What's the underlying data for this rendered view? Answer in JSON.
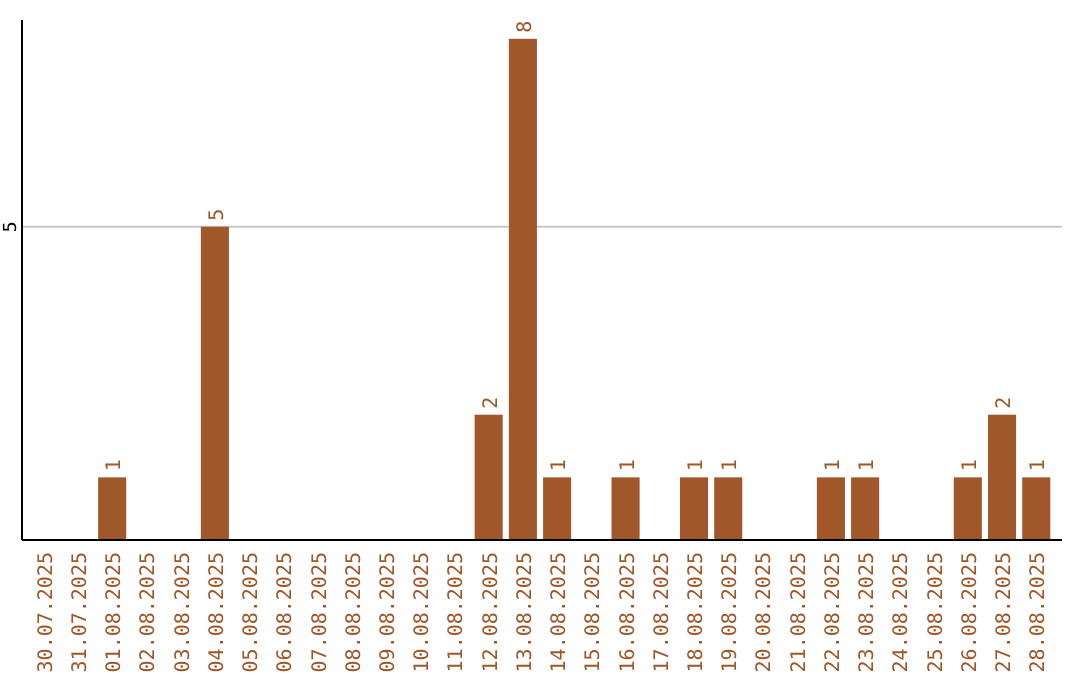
{
  "chart_data": {
    "type": "bar",
    "categories": [
      "30.07.2025",
      "31.07.2025",
      "01.08.2025",
      "02.08.2025",
      "03.08.2025",
      "04.08.2025",
      "05.08.2025",
      "06.08.2025",
      "07.08.2025",
      "08.08.2025",
      "09.08.2025",
      "10.08.2025",
      "11.08.2025",
      "12.08.2025",
      "13.08.2025",
      "14.08.2025",
      "15.08.2025",
      "16.08.2025",
      "17.08.2025",
      "18.08.2025",
      "19.08.2025",
      "20.08.2025",
      "21.08.2025",
      "22.08.2025",
      "23.08.2025",
      "24.08.2025",
      "25.08.2025",
      "26.08.2025",
      "27.08.2025",
      "28.08.2025"
    ],
    "values": [
      0,
      0,
      1,
      0,
      0,
      5,
      0,
      0,
      0,
      0,
      0,
      0,
      0,
      2,
      8,
      1,
      0,
      1,
      0,
      1,
      1,
      0,
      0,
      1,
      1,
      0,
      0,
      1,
      2,
      1
    ],
    "value_labels": [
      null,
      null,
      "1",
      null,
      null,
      "5",
      null,
      null,
      null,
      null,
      null,
      null,
      null,
      "2",
      "8",
      "1",
      null,
      "1",
      null,
      "1",
      "1",
      null,
      null,
      "1",
      "1",
      null,
      null,
      "1",
      "2",
      "1"
    ],
    "color": "#a0572a",
    "ylim": [
      0,
      8.3
    ],
    "yticks": [
      5
    ],
    "grid": "y"
  }
}
